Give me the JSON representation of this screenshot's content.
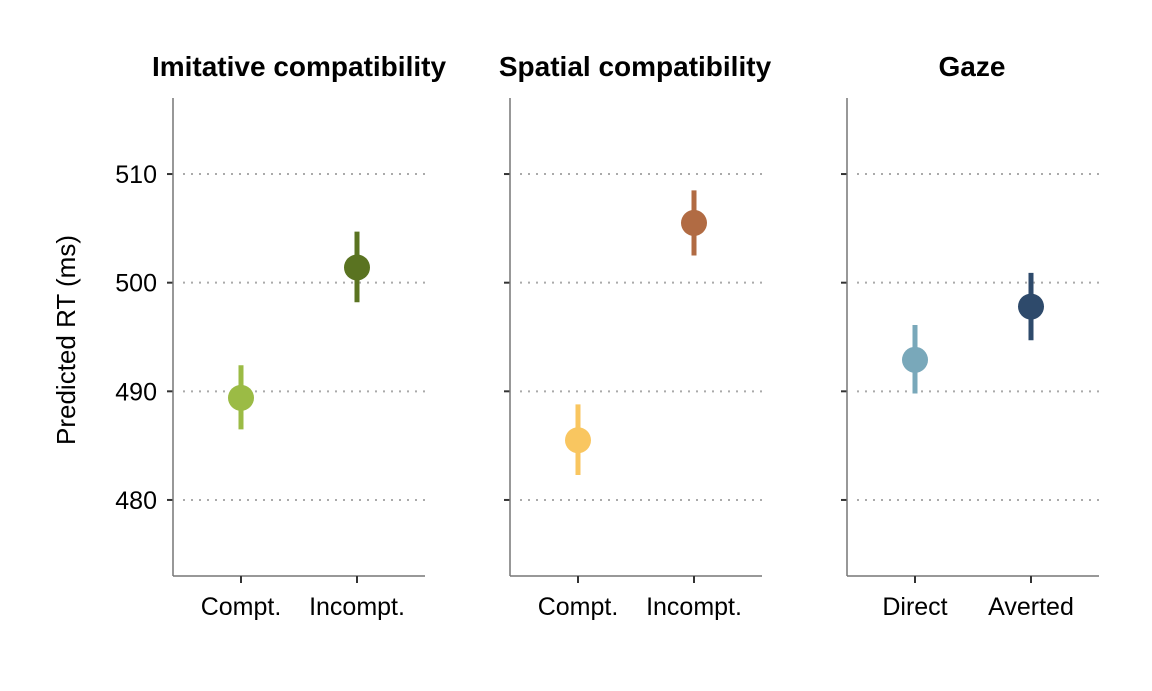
{
  "chart_data": {
    "type": "scatter",
    "ylabel": "Predicted RT (ms)",
    "ylim": [
      473,
      517
    ],
    "yticks": [
      480,
      490,
      500,
      510
    ],
    "grid": "horizontal dotted",
    "panels": [
      {
        "title": "Imitative compatibility",
        "categories": [
          "Compt.",
          "Incompt."
        ],
        "points": [
          {
            "category": "Compt.",
            "value": 489.4,
            "lower": 486.5,
            "upper": 492.4,
            "color": "#9BBB45"
          },
          {
            "category": "Incompt.",
            "value": 501.4,
            "lower": 498.2,
            "upper": 504.7,
            "color": "#5A7321"
          }
        ]
      },
      {
        "title": "Spatial compatibility",
        "categories": [
          "Compt.",
          "Incompt."
        ],
        "points": [
          {
            "category": "Compt.",
            "value": 485.5,
            "lower": 482.3,
            "upper": 488.8,
            "color": "#F9C660"
          },
          {
            "category": "Incompt.",
            "value": 505.5,
            "lower": 502.5,
            "upper": 508.5,
            "color": "#B16B43"
          }
        ]
      },
      {
        "title": "Gaze",
        "categories": [
          "Direct",
          "Averted"
        ],
        "points": [
          {
            "category": "Direct",
            "value": 492.9,
            "lower": 489.8,
            "upper": 496.1,
            "color": "#79A8BA"
          },
          {
            "category": "Averted",
            "value": 497.8,
            "lower": 494.7,
            "upper": 500.9,
            "color": "#2E4A6B"
          }
        ]
      }
    ]
  }
}
